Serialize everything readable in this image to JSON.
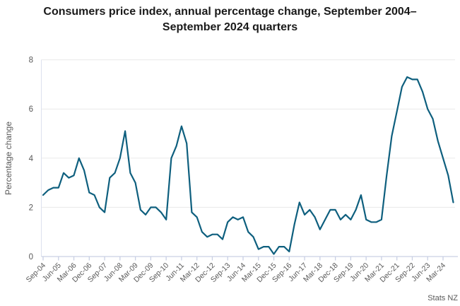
{
  "page": {
    "title": "Consumers price index, annual percentage change, September 2004–September 2024 quarters",
    "source": "Stats NZ"
  },
  "chart_data": {
    "type": "line",
    "title": "Consumers price index, annual percentage change, September 2004–September 2024 quarters",
    "xlabel": "",
    "ylabel": "Percentage change",
    "ylim": [
      0,
      8
    ],
    "yticks": [
      0,
      2,
      4,
      6,
      8
    ],
    "x_label_every": 3,
    "grid": "horizontal",
    "legend": "none",
    "categories": [
      "Sep-04",
      "Dec-04",
      "Mar-05",
      "Jun-05",
      "Sep-05",
      "Dec-05",
      "Mar-06",
      "Jun-06",
      "Sep-06",
      "Dec-06",
      "Mar-07",
      "Jun-07",
      "Sep-07",
      "Dec-07",
      "Mar-08",
      "Jun-08",
      "Sep-08",
      "Dec-08",
      "Mar-09",
      "Jun-09",
      "Sep-09",
      "Dec-09",
      "Mar-10",
      "Jun-10",
      "Sep-10",
      "Dec-10",
      "Mar-11",
      "Jun-11",
      "Sep-11",
      "Dec-11",
      "Mar-12",
      "Jun-12",
      "Sep-12",
      "Dec-12",
      "Mar-13",
      "Jun-13",
      "Sep-13",
      "Dec-13",
      "Mar-14",
      "Jun-14",
      "Sep-14",
      "Dec-14",
      "Mar-15",
      "Jun-15",
      "Sep-15",
      "Dec-15",
      "Mar-16",
      "Jun-16",
      "Sep-16",
      "Dec-16",
      "Mar-17",
      "Jun-17",
      "Sep-17",
      "Dec-17",
      "Mar-18",
      "Jun-18",
      "Sep-18",
      "Dec-18",
      "Mar-19",
      "Jun-19",
      "Sep-19",
      "Dec-19",
      "Mar-20",
      "Jun-20",
      "Sep-20",
      "Dec-20",
      "Mar-21",
      "Jun-21",
      "Sep-21",
      "Dec-21",
      "Mar-22",
      "Jun-22",
      "Sep-22",
      "Dec-22",
      "Mar-23",
      "Jun-23",
      "Sep-23",
      "Dec-23",
      "Mar-24",
      "Jun-24",
      "Sep-24"
    ],
    "series": [
      {
        "name": "CPI annual percentage change",
        "color": "#0e5f7e",
        "values": [
          2.5,
          2.7,
          2.8,
          2.8,
          3.4,
          3.2,
          3.3,
          4.0,
          3.5,
          2.6,
          2.5,
          2.0,
          1.8,
          3.2,
          3.4,
          4.0,
          5.1,
          3.4,
          3.0,
          1.9,
          1.7,
          2.0,
          2.0,
          1.8,
          1.5,
          4.0,
          4.5,
          5.3,
          4.6,
          1.8,
          1.6,
          1.0,
          0.8,
          0.9,
          0.9,
          0.7,
          1.4,
          1.6,
          1.5,
          1.6,
          1.0,
          0.8,
          0.3,
          0.4,
          0.4,
          0.1,
          0.4,
          0.4,
          0.2,
          1.3,
          2.2,
          1.7,
          1.9,
          1.6,
          1.1,
          1.5,
          1.9,
          1.9,
          1.5,
          1.7,
          1.5,
          1.9,
          2.5,
          1.5,
          1.4,
          1.4,
          1.5,
          3.3,
          4.9,
          5.9,
          6.9,
          7.3,
          7.2,
          7.2,
          6.7,
          6.0,
          5.6,
          4.7,
          4.0,
          3.3,
          2.2
        ]
      }
    ]
  },
  "colors": {
    "line": "#0e5f7e",
    "gridline": "#e9e9e9",
    "axis": "#c9d0e4",
    "tick_label": "#595959",
    "title_text": "#1a1a1a"
  }
}
